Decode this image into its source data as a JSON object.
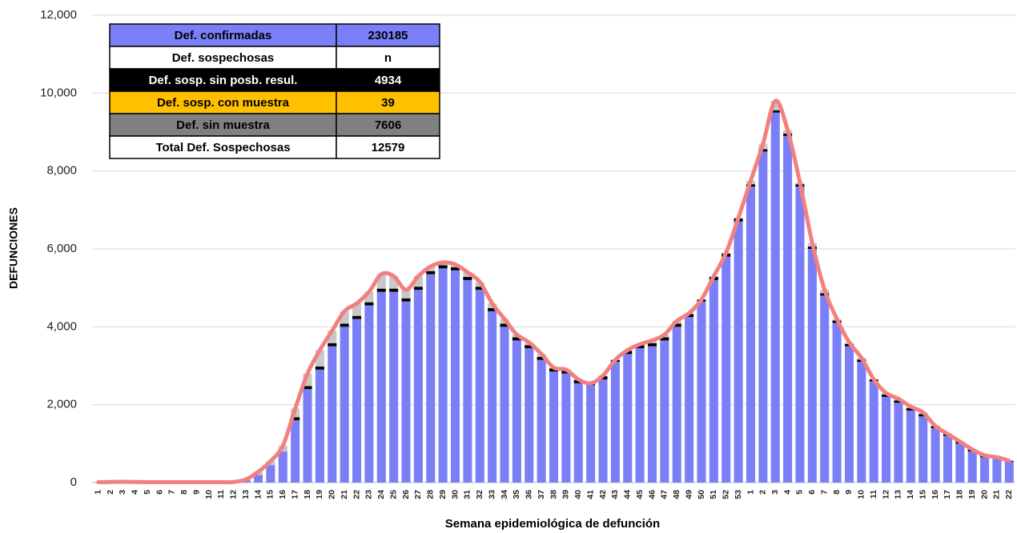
{
  "chart_data": {
    "type": "stacked-bar-line",
    "x_label": "Semana epidemiológica de defunción",
    "y_label": "DEFUNCIONES",
    "categories": [
      "1",
      "2",
      "3",
      "4",
      "5",
      "6",
      "7",
      "8",
      "9",
      "10",
      "11",
      "12",
      "13",
      "14",
      "15",
      "16",
      "17",
      "18",
      "19",
      "20",
      "21",
      "22",
      "23",
      "24",
      "25",
      "26",
      "27",
      "28",
      "29",
      "30",
      "31",
      "32",
      "33",
      "34",
      "35",
      "36",
      "37",
      "38",
      "39",
      "40",
      "41",
      "42",
      "43",
      "44",
      "45",
      "46",
      "47",
      "48",
      "49",
      "50",
      "51",
      "52",
      "53",
      "1",
      "2",
      "3",
      "4",
      "5",
      "6",
      "7",
      "8",
      "9",
      "10",
      "11",
      "12",
      "13",
      "14",
      "15",
      "16",
      "17",
      "18",
      "19",
      "20",
      "21",
      "22"
    ],
    "series": [
      {
        "name": "Def. confirmadas",
        "color": "#7b7ff7",
        "text_color": "#000000",
        "total": 230185,
        "values": [
          10,
          15,
          20,
          15,
          10,
          10,
          10,
          10,
          10,
          10,
          10,
          15,
          60,
          200,
          450,
          800,
          1600,
          2400,
          2900,
          3500,
          4000,
          4200,
          4550,
          4900,
          4900,
          4650,
          4950,
          5350,
          5500,
          5450,
          5200,
          4950,
          4400,
          4000,
          3650,
          3450,
          3150,
          2850,
          2800,
          2550,
          2500,
          2650,
          3100,
          3300,
          3450,
          3500,
          3650,
          4000,
          4250,
          4650,
          5200,
          5800,
          6700,
          7600,
          8500,
          9500,
          8900,
          7600,
          6000,
          4800,
          4100,
          3500,
          3100,
          2600,
          2200,
          2050,
          1850,
          1700,
          1400,
          1200,
          1000,
          800,
          650,
          620,
          540
        ]
      },
      {
        "name": "Def. sosp. sin posb. resul.",
        "color": "#000000",
        "text_color": "#ffffff",
        "total": 4934,
        "values": [
          0,
          0,
          0,
          0,
          0,
          0,
          0,
          0,
          0,
          0,
          0,
          0,
          0,
          0,
          0,
          0,
          80,
          80,
          80,
          80,
          80,
          80,
          80,
          80,
          80,
          80,
          80,
          80,
          80,
          80,
          80,
          80,
          80,
          80,
          80,
          80,
          80,
          80,
          80,
          80,
          50,
          80,
          50,
          80,
          80,
          80,
          80,
          80,
          80,
          50,
          80,
          80,
          80,
          60,
          60,
          60,
          60,
          60,
          60,
          60,
          60,
          60,
          60,
          50,
          60,
          60,
          60,
          60,
          50,
          50,
          50,
          50,
          50,
          30,
          20
        ]
      },
      {
        "name": "Def. sosp. con  muestra",
        "color": "#ffc000",
        "text_color": "#000000",
        "total": 39,
        "values": [
          0,
          0,
          0,
          0,
          0,
          0,
          0,
          0,
          0,
          0,
          0,
          0,
          0,
          0,
          0,
          0,
          0,
          0,
          0,
          0,
          0,
          0,
          0,
          0,
          0,
          0,
          0,
          0,
          0,
          0,
          0,
          0,
          0,
          0,
          0,
          0,
          0,
          0,
          0,
          0,
          0,
          0,
          0,
          0,
          0,
          0,
          0,
          0,
          0,
          0,
          0,
          0,
          0,
          0,
          0,
          0,
          0,
          0,
          0,
          0,
          0,
          0,
          0,
          0,
          0,
          0,
          0,
          0,
          0,
          0,
          0,
          0,
          0,
          0,
          0
        ]
      },
      {
        "name": "Def. sin muestra",
        "color": "#c8c8c8",
        "row_color": "#808080",
        "text_color": "#000000",
        "total": 7606,
        "values": [
          0,
          0,
          0,
          0,
          0,
          0,
          0,
          0,
          0,
          0,
          0,
          0,
          20,
          80,
          100,
          150,
          220,
          320,
          420,
          320,
          320,
          320,
          270,
          370,
          320,
          220,
          270,
          120,
          70,
          70,
          120,
          120,
          120,
          120,
          70,
          70,
          70,
          20,
          20,
          20,
          0,
          20,
          0,
          20,
          20,
          70,
          70,
          70,
          20,
          0,
          20,
          20,
          20,
          90,
          140,
          240,
          90,
          40,
          90,
          90,
          40,
          40,
          40,
          0,
          40,
          40,
          40,
          40,
          0,
          0,
          0,
          0,
          0,
          0,
          0
        ]
      }
    ],
    "line": {
      "color": "#f28080",
      "values": [
        10,
        15,
        20,
        15,
        10,
        10,
        10,
        10,
        10,
        10,
        10,
        15,
        80,
        280,
        550,
        950,
        1900,
        2800,
        3400,
        3900,
        4400,
        4600,
        4900,
        5350,
        5300,
        4950,
        5300,
        5550,
        5650,
        5600,
        5400,
        5150,
        4600,
        4200,
        3800,
        3600,
        3300,
        2950,
        2900,
        2650,
        2550,
        2750,
        3150,
        3400,
        3550,
        3650,
        3800,
        4150,
        4350,
        4700,
        5300,
        5900,
        6800,
        7750,
        8700,
        9800,
        9050,
        7700,
        6150,
        4950,
        4200,
        3600,
        3200,
        2650,
        2300,
        2150,
        1950,
        1800,
        1450,
        1250,
        1050,
        850,
        700,
        650,
        560
      ]
    },
    "suspected_header": [
      "Def. sospechosas",
      "n"
    ],
    "suspected_total": {
      "label": "Total Def. Sospechosas",
      "value": 12579
    },
    "ylim": [
      0,
      12000
    ],
    "yticks": [
      0,
      {
        "value": 2000,
        "label": "2,000"
      },
      {
        "value": 4000,
        "label": "4,000"
      },
      {
        "value": 6000,
        "label": "6,000"
      },
      {
        "value": 8000,
        "label": "8,000"
      },
      {
        "value": 10000,
        "label": "10,000"
      },
      {
        "value": 12000,
        "label": "12,000"
      }
    ],
    "grid": true
  }
}
